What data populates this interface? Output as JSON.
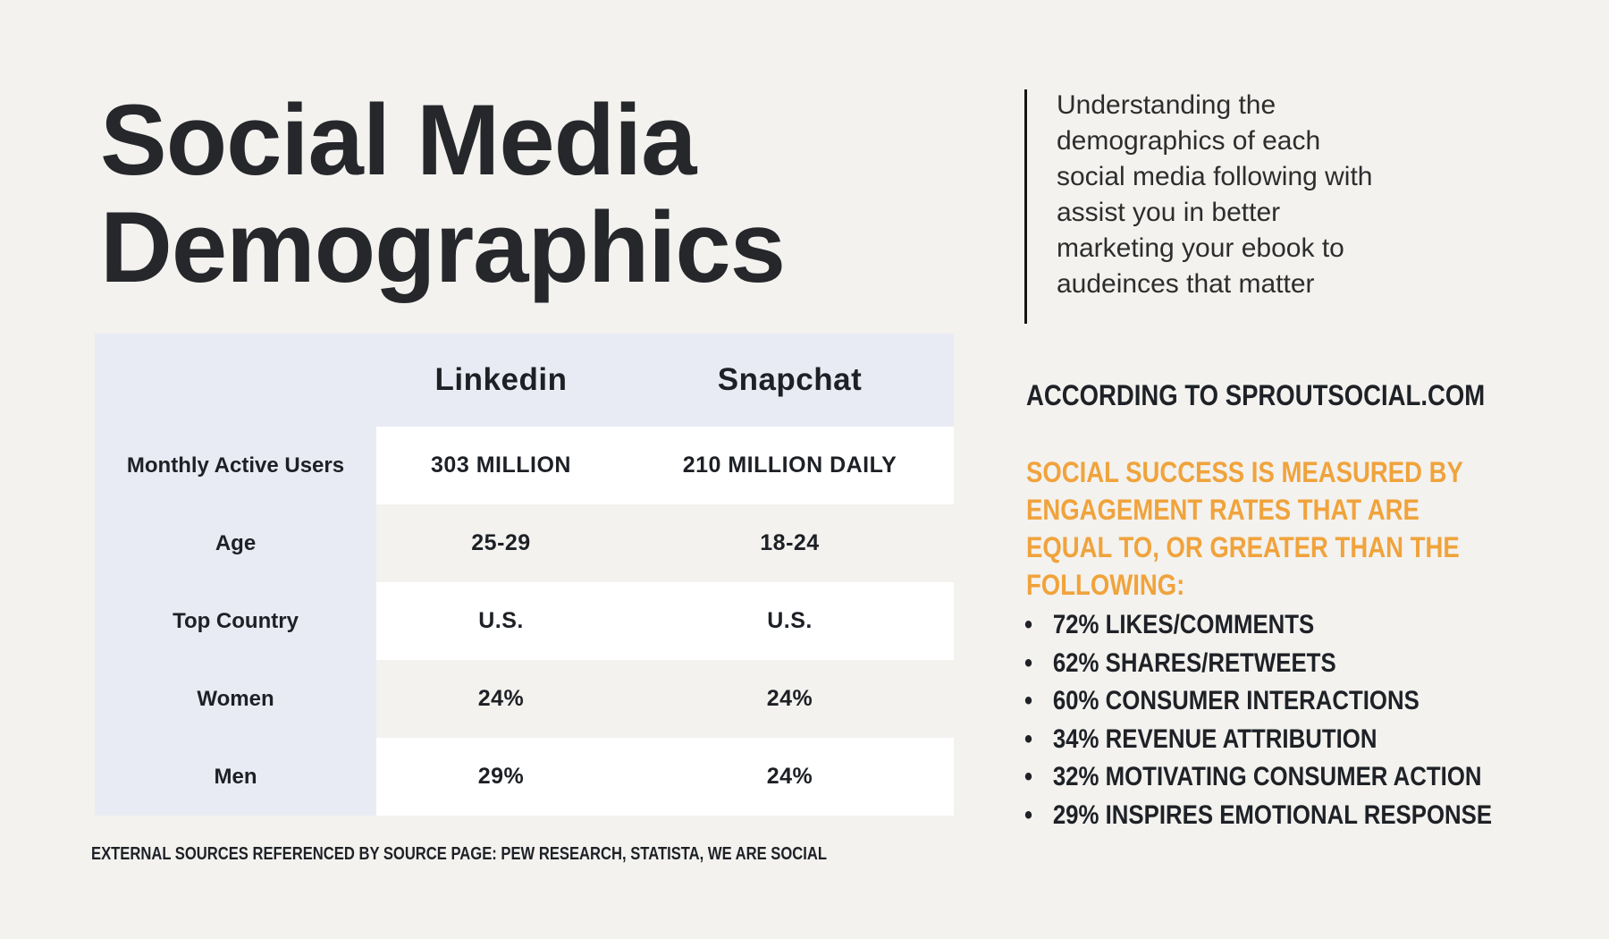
{
  "page": {
    "background_color": "#f3f2ef",
    "accent_orange": "#f0a33c",
    "panel_lavender": "#e9ebf4",
    "text_dark": "#1e2126",
    "title": "Social Media\nDemographics"
  },
  "table": {
    "columns": [
      "",
      "Linkedin",
      "Snapchat"
    ],
    "rows": [
      {
        "label": "Monthly Active Users",
        "linkedin": "303 MILLION",
        "snapchat": "210 MILLION DAILY"
      },
      {
        "label": "Age",
        "linkedin": "25-29",
        "snapchat": "18-24"
      },
      {
        "label": "Top Country",
        "linkedin": "U.S.",
        "snapchat": "U.S."
      },
      {
        "label": "Women",
        "linkedin": "24%",
        "snapchat": "24%"
      },
      {
        "label": "Men",
        "linkedin": "29%",
        "snapchat": "24%"
      }
    ]
  },
  "source_note": "EXTERNAL SOURCES REFERENCED BY SOURCE PAGE: PEW RESEARCH, STATISTA, WE ARE SOCIAL",
  "sidebar": {
    "intro": "Understanding the\ndemographics of each\nsocial media following with\nassist you in better\nmarketing your ebook to\naudeinces that matter",
    "according": "ACCORDING TO SPROUTSOCIAL.COM",
    "engagement_heading": "SOCIAL SUCCESS IS MEASURED BY\nENGAGEMENT RATES THAT ARE\nEQUAL TO, OR GREATER THAN THE\nFOLLOWING:",
    "bullet_glyph": "•",
    "bullets": [
      "72% LIKES/COMMENTS",
      "62% SHARES/RETWEETS",
      "60% CONSUMER INTERACTIONS",
      "34% REVENUE ATTRIBUTION",
      "32% MOTIVATING CONSUMER ACTION",
      "29% INSPIRES EMOTIONAL RESPONSE"
    ]
  }
}
